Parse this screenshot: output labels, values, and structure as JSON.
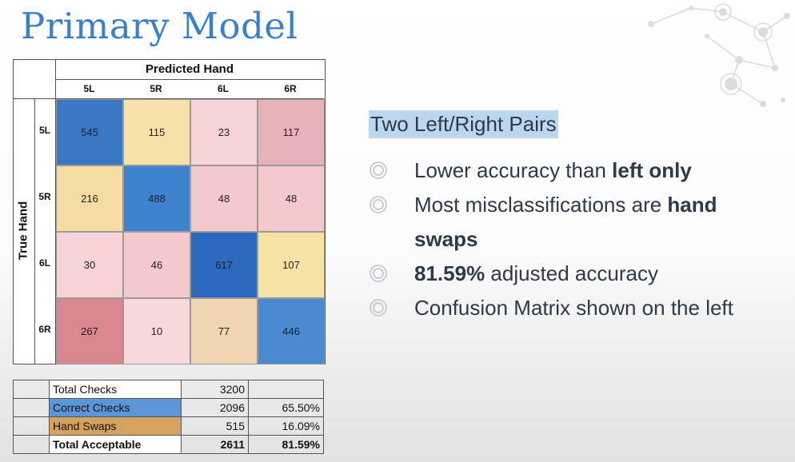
{
  "title": "Primary Model",
  "matrix": {
    "x_title": "Predicted Hand",
    "y_title": "True Hand",
    "col_labels": [
      "5L",
      "5R",
      "6L",
      "6R"
    ],
    "row_labels": [
      "5L",
      "5R",
      "6L",
      "6R"
    ],
    "rows": [
      [
        "545",
        "115",
        "23",
        "117"
      ],
      [
        "216",
        "488",
        "48",
        "48"
      ],
      [
        "30",
        "46",
        "617",
        "107"
      ],
      [
        "267",
        "10",
        "77",
        "446"
      ]
    ],
    "colors": [
      [
        "#3a78c4",
        "#f6e2a8",
        "#f6d3d6",
        "#e8b2ba"
      ],
      [
        "#f6dca4",
        "#3f82cd",
        "#f3c9ce",
        "#f3c9ce"
      ],
      [
        "#f6d3d6",
        "#f3c9ce",
        "#2a69be",
        "#f7e2a5"
      ],
      [
        "#d9868f",
        "#f7d9dc",
        "#f0d7b1",
        "#4a8ad1"
      ]
    ]
  },
  "summary": {
    "rows": [
      {
        "label": "Total Checks",
        "count": "3200",
        "pct": "",
        "color": "#ffffff",
        "bold": false
      },
      {
        "label": "Correct Checks",
        "count": "2096",
        "pct": "65.50%",
        "color": "#5b96d8",
        "bold": false
      },
      {
        "label": "Hand Swaps",
        "count": "515",
        "pct": "16.09%",
        "color": "#d5a35e",
        "bold": false
      },
      {
        "label": "Total Acceptable",
        "count": "2611",
        "pct": "81.59%",
        "color": "#ffffff",
        "bold": true
      }
    ]
  },
  "right": {
    "subtitle": "Two Left/Right Pairs",
    "b1_text": "Lower accuracy than ",
    "b1_bold": "left only",
    "b2_text": "Most misclassifications are ",
    "b2_bold": "hand swaps",
    "b3_bold": "81.59%",
    "b3_text": " adjusted accuracy",
    "b4_text": "Confusion Matrix shown on the left"
  }
}
